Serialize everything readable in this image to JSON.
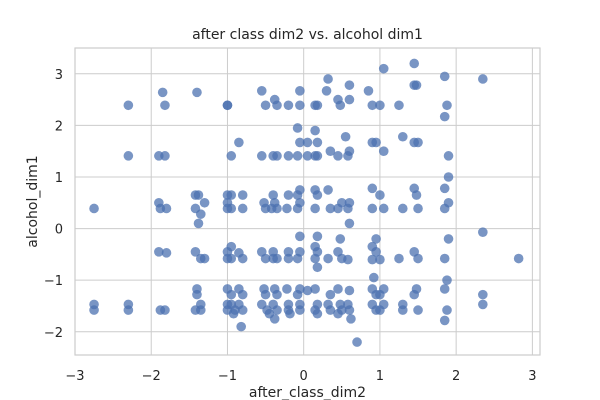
{
  "chart_data": {
    "type": "scatter",
    "title": "after class dim2 vs. alcohol dim1",
    "xlabel": "after_class_dim2",
    "ylabel": "alcohol_dim1",
    "xlim": [
      -3.0,
      3.1
    ],
    "ylim": [
      -2.45,
      3.5
    ],
    "xticks": [
      -3,
      -2,
      -1,
      0,
      1,
      2,
      3
    ],
    "yticks": [
      -2,
      -1,
      0,
      1,
      2,
      3
    ],
    "grid": true,
    "color": "#4c72b0",
    "series": [
      {
        "points": [
          [
            -2.75,
            0.39
          ],
          [
            -2.75,
            -1.47
          ],
          [
            -2.75,
            -1.58
          ],
          [
            -2.3,
            2.39
          ],
          [
            -2.3,
            1.41
          ],
          [
            -2.3,
            -1.47
          ],
          [
            -2.3,
            -1.58
          ],
          [
            -1.85,
            2.64
          ],
          [
            -1.82,
            2.39
          ],
          [
            -1.9,
            1.41
          ],
          [
            -1.82,
            1.41
          ],
          [
            -1.9,
            0.5
          ],
          [
            -1.88,
            0.39
          ],
          [
            -1.8,
            0.39
          ],
          [
            -1.9,
            -0.45
          ],
          [
            -1.8,
            -0.47
          ],
          [
            -1.88,
            -1.58
          ],
          [
            -1.82,
            -1.58
          ],
          [
            -1.4,
            2.64
          ],
          [
            -1.42,
            0.65
          ],
          [
            -1.38,
            0.65
          ],
          [
            -1.3,
            0.5
          ],
          [
            -1.42,
            0.39
          ],
          [
            -1.35,
            0.28
          ],
          [
            -1.38,
            0.1
          ],
          [
            -1.42,
            -0.45
          ],
          [
            -1.35,
            -0.58
          ],
          [
            -1.3,
            -0.58
          ],
          [
            -1.4,
            -1.17
          ],
          [
            -1.4,
            -1.28
          ],
          [
            -1.35,
            -1.47
          ],
          [
            -1.42,
            -1.58
          ],
          [
            -1.35,
            -1.58
          ],
          [
            -1.0,
            2.39
          ],
          [
            -1.0,
            2.39
          ],
          [
            -0.95,
            1.41
          ],
          [
            -1.0,
            0.65
          ],
          [
            -0.95,
            0.65
          ],
          [
            -1.0,
            0.5
          ],
          [
            -0.95,
            0.39
          ],
          [
            -1.0,
            0.39
          ],
          [
            -0.95,
            -0.35
          ],
          [
            -1.0,
            -0.45
          ],
          [
            -0.95,
            -0.58
          ],
          [
            -1.0,
            -0.58
          ],
          [
            -1.0,
            -1.17
          ],
          [
            -0.95,
            -1.28
          ],
          [
            -1.0,
            -1.47
          ],
          [
            -0.95,
            -1.47
          ],
          [
            -0.9,
            -1.58
          ],
          [
            -1.0,
            -1.58
          ],
          [
            -0.92,
            -1.65
          ],
          [
            -0.85,
            1.67
          ],
          [
            -0.8,
            0.65
          ],
          [
            -0.8,
            0.39
          ],
          [
            -0.85,
            -0.47
          ],
          [
            -0.8,
            -0.58
          ],
          [
            -0.85,
            -1.17
          ],
          [
            -0.8,
            -1.28
          ],
          [
            -0.85,
            -1.47
          ],
          [
            -0.8,
            -1.58
          ],
          [
            -0.82,
            -1.9
          ],
          [
            -0.55,
            2.67
          ],
          [
            -0.5,
            2.39
          ],
          [
            -0.55,
            1.41
          ],
          [
            -0.52,
            0.5
          ],
          [
            -0.5,
            0.39
          ],
          [
            -0.55,
            -0.45
          ],
          [
            -0.5,
            -0.58
          ],
          [
            -0.52,
            -1.17
          ],
          [
            -0.5,
            -1.28
          ],
          [
            -0.55,
            -1.47
          ],
          [
            -0.48,
            -1.58
          ],
          [
            -0.45,
            -1.65
          ],
          [
            -0.38,
            2.5
          ],
          [
            -0.35,
            2.39
          ],
          [
            -0.4,
            1.41
          ],
          [
            -0.35,
            1.41
          ],
          [
            -0.4,
            0.65
          ],
          [
            -0.38,
            0.5
          ],
          [
            -0.35,
            0.39
          ],
          [
            -0.42,
            0.39
          ],
          [
            -0.4,
            -0.45
          ],
          [
            -0.35,
            -0.58
          ],
          [
            -0.4,
            -0.58
          ],
          [
            -0.38,
            -1.17
          ],
          [
            -0.35,
            -1.28
          ],
          [
            -0.4,
            -1.47
          ],
          [
            -0.35,
            -1.58
          ],
          [
            -0.38,
            -1.75
          ],
          [
            -0.2,
            2.39
          ],
          [
            -0.2,
            1.41
          ],
          [
            -0.2,
            0.65
          ],
          [
            -0.22,
            0.39
          ],
          [
            -0.2,
            -0.45
          ],
          [
            -0.2,
            -0.58
          ],
          [
            -0.22,
            -1.17
          ],
          [
            -0.2,
            -1.47
          ],
          [
            -0.2,
            -1.58
          ],
          [
            -0.18,
            -1.65
          ],
          [
            -0.05,
            2.67
          ],
          [
            -0.05,
            2.39
          ],
          [
            -0.08,
            1.95
          ],
          [
            -0.05,
            1.67
          ],
          [
            -0.08,
            1.41
          ],
          [
            -0.05,
            0.75
          ],
          [
            -0.08,
            0.65
          ],
          [
            -0.05,
            0.5
          ],
          [
            -0.08,
            0.39
          ],
          [
            -0.05,
            -0.15
          ],
          [
            -0.05,
            -0.45
          ],
          [
            -0.08,
            -0.58
          ],
          [
            -0.05,
            -1.17
          ],
          [
            -0.08,
            -1.28
          ],
          [
            -0.05,
            -1.47
          ],
          [
            -0.05,
            -1.58
          ],
          [
            0.05,
            1.67
          ],
          [
            0.05,
            1.41
          ],
          [
            0.05,
            -1.2
          ],
          [
            0.15,
            2.39
          ],
          [
            0.18,
            2.39
          ],
          [
            0.15,
            1.9
          ],
          [
            0.18,
            1.67
          ],
          [
            0.15,
            1.41
          ],
          [
            0.18,
            1.41
          ],
          [
            0.15,
            0.75
          ],
          [
            0.18,
            0.65
          ],
          [
            0.15,
            0.39
          ],
          [
            0.18,
            -0.15
          ],
          [
            0.15,
            -0.35
          ],
          [
            0.18,
            -0.45
          ],
          [
            0.15,
            -0.58
          ],
          [
            0.18,
            -0.75
          ],
          [
            0.15,
            -1.17
          ],
          [
            0.18,
            -1.47
          ],
          [
            0.15,
            -1.58
          ],
          [
            0.18,
            -1.65
          ],
          [
            0.32,
            2.9
          ],
          [
            0.3,
            2.67
          ],
          [
            0.35,
            1.5
          ],
          [
            0.32,
            0.75
          ],
          [
            0.35,
            0.39
          ],
          [
            0.32,
            -0.58
          ],
          [
            0.35,
            -1.28
          ],
          [
            0.32,
            -1.47
          ],
          [
            0.35,
            -1.58
          ],
          [
            0.45,
            2.5
          ],
          [
            0.48,
            2.39
          ],
          [
            0.45,
            1.41
          ],
          [
            0.5,
            0.5
          ],
          [
            0.45,
            0.39
          ],
          [
            0.48,
            -0.2
          ],
          [
            0.45,
            -0.45
          ],
          [
            0.5,
            -0.58
          ],
          [
            0.45,
            -1.17
          ],
          [
            0.48,
            -1.47
          ],
          [
            0.5,
            -1.58
          ],
          [
            0.45,
            -1.65
          ],
          [
            0.6,
            2.78
          ],
          [
            0.6,
            2.5
          ],
          [
            0.55,
            1.78
          ],
          [
            0.6,
            1.5
          ],
          [
            0.58,
            1.41
          ],
          [
            0.6,
            0.5
          ],
          [
            0.58,
            0.39
          ],
          [
            0.6,
            0.1
          ],
          [
            0.58,
            -0.6
          ],
          [
            0.6,
            -1.2
          ],
          [
            0.58,
            -1.47
          ],
          [
            0.6,
            -1.58
          ],
          [
            0.62,
            -1.75
          ],
          [
            0.7,
            -2.2
          ],
          [
            0.85,
            2.67
          ],
          [
            0.9,
            2.39
          ],
          [
            0.9,
            1.67
          ],
          [
            0.95,
            1.67
          ],
          [
            0.9,
            0.78
          ],
          [
            0.9,
            0.39
          ],
          [
            0.95,
            -0.2
          ],
          [
            0.9,
            -0.35
          ],
          [
            0.95,
            -0.45
          ],
          [
            0.9,
            -0.6
          ],
          [
            0.92,
            -0.95
          ],
          [
            0.9,
            -1.17
          ],
          [
            0.95,
            -1.28
          ],
          [
            0.9,
            -1.47
          ],
          [
            0.95,
            -1.58
          ],
          [
            1.0,
            2.39
          ],
          [
            1.05,
            3.1
          ],
          [
            1.05,
            1.5
          ],
          [
            1.0,
            0.65
          ],
          [
            1.05,
            0.39
          ],
          [
            1.0,
            -0.6
          ],
          [
            1.05,
            -1.17
          ],
          [
            1.0,
            -1.28
          ],
          [
            1.05,
            -1.47
          ],
          [
            1.0,
            -1.58
          ],
          [
            1.25,
            2.39
          ],
          [
            1.3,
            1.78
          ],
          [
            1.3,
            0.39
          ],
          [
            1.25,
            -0.58
          ],
          [
            1.3,
            -1.47
          ],
          [
            1.3,
            -1.58
          ],
          [
            1.45,
            3.2
          ],
          [
            1.45,
            2.78
          ],
          [
            1.48,
            2.78
          ],
          [
            1.45,
            1.67
          ],
          [
            1.5,
            1.67
          ],
          [
            1.45,
            0.78
          ],
          [
            1.48,
            0.65
          ],
          [
            1.5,
            0.39
          ],
          [
            1.45,
            -0.45
          ],
          [
            1.5,
            -0.58
          ],
          [
            1.48,
            -1.17
          ],
          [
            1.45,
            -1.28
          ],
          [
            1.5,
            -1.58
          ],
          [
            1.85,
            2.95
          ],
          [
            1.88,
            2.39
          ],
          [
            1.85,
            2.17
          ],
          [
            1.9,
            1.41
          ],
          [
            1.9,
            1.0
          ],
          [
            1.85,
            0.78
          ],
          [
            1.9,
            0.5
          ],
          [
            1.85,
            0.39
          ],
          [
            1.9,
            -0.2
          ],
          [
            1.85,
            -0.58
          ],
          [
            1.88,
            -1.0
          ],
          [
            1.85,
            -1.17
          ],
          [
            1.88,
            -1.58
          ],
          [
            1.85,
            -1.78
          ],
          [
            2.35,
            2.9
          ],
          [
            2.35,
            -0.07
          ],
          [
            2.35,
            -1.28
          ],
          [
            2.35,
            -1.47
          ],
          [
            2.82,
            -0.58
          ]
        ]
      }
    ]
  }
}
